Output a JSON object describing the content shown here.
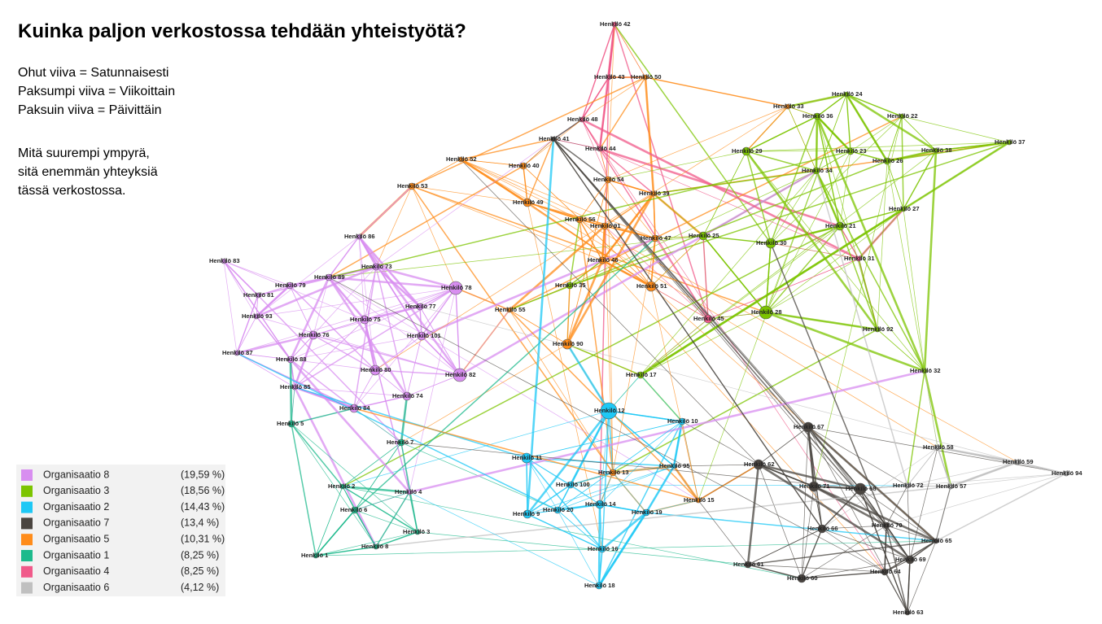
{
  "title": "Kuinka paljon verkostossa tehdään yhteistyötä?",
  "notes": [
    "Ohut viiva = Satunnaisesti",
    "Paksumpi viiva = Viikoittain",
    "Paksuin viiva = Päivittäin",
    "Mitä suurempi ympyrä,",
    "sitä enemmän yhteyksiä",
    "tässä verkostossa."
  ],
  "legend": [
    {
      "label": "Organisaatio 8",
      "share": "(19,59 %)",
      "color": "#d88ef0"
    },
    {
      "label": "Organisaatio 3",
      "share": "(18,56 %)",
      "color": "#7cc400"
    },
    {
      "label": "Organisaatio 2",
      "share": "(14,43 %)",
      "color": "#1ec8f5"
    },
    {
      "label": "Organisaatio 7",
      "share": "(13,4 %)",
      "color": "#4a4540"
    },
    {
      "label": "Organisaatio 5",
      "share": "(10,31 %)",
      "color": "#ff8c1a"
    },
    {
      "label": "Organisaatio 1",
      "share": "(8,25 %)",
      "color": "#1dba8c"
    },
    {
      "label": "Organisaatio 4",
      "share": "(8,25 %)",
      "color": "#f05a8a"
    },
    {
      "label": "Organisaatio 6",
      "share": "(4,12 %)",
      "color": "#c0c0c0"
    }
  ],
  "nodes": [
    "Henkilö 42",
    "Henkilö 43",
    "Henkilö 50",
    "Henkilö 48",
    "Henkilö 41",
    "Henkilö 44",
    "Henkilö 40",
    "Henkilö 52",
    "Henkilö 53",
    "Henkilö 49",
    "Henkilö 54",
    "Henkilö 39",
    "Henkilö 56",
    "Henkilö 91",
    "Henkilö 47",
    "Henkilö 25",
    "Henkilö 46",
    "Henkilö 86",
    "Henkilö 83",
    "Henkilö 73",
    "Henkilö 79",
    "Henkilö 89",
    "Henkilö 78",
    "Henkilö 35",
    "Henkilö 51",
    "Henkilö 81",
    "Henkilö 77",
    "Henkilö 55",
    "Henkilö 93",
    "Henkilö 75",
    "Henkilö 101",
    "Henkilö 76",
    "Henkilö 87",
    "Henkilö 88",
    "Henkilö 80",
    "Henkilö 82",
    "Henkilö 90",
    "Henkilö 45",
    "Henkilö 28",
    "Henkilö 30",
    "Henkilö 21",
    "Henkilö 31",
    "Henkilö 29",
    "Henkilö 33",
    "Henkilö 24",
    "Henkilö 36",
    "Henkilö 22",
    "Henkilö 23",
    "Henkilö 38",
    "Henkilö 26",
    "Henkilö 34",
    "Henkilö 37",
    "Henkilö 27",
    "Henkilö 92",
    "Henkilö 32",
    "Henkilö 85",
    "Henkilö 17",
    "Henkilö 84",
    "Henkilö 74",
    "Henkilö 12",
    "Henkilö 10",
    "Henkilö 5",
    "Henkilö 7",
    "Henkilö 67",
    "Henkilö 58",
    "Henkilö 59",
    "Henkilö 94",
    "Henkilö 11",
    "Henkilö 13",
    "Henkilö 95",
    "Henkilö 62",
    "Henkilö 2",
    "Henkilö 4",
    "Henkilö 100",
    "Henkilö 6",
    "Henkilö 15",
    "Henkilö 14",
    "Henkilö 20",
    "Henkilö 9",
    "Henkilö 19",
    "Henkilö 3",
    "Henkilö 71",
    "Henkilö 68",
    "Henkilö 72",
    "Henkilö 57",
    "Henkilö 66",
    "Henkilö 70",
    "Henkilö 65",
    "Henkilö 8",
    "Henkilö 1",
    "Henkilö 16",
    "Henkilö 61",
    "Henkilö 60",
    "Henkilö 69",
    "Henkilö 64",
    "Henkilö 18",
    "Henkilö 63"
  ]
}
